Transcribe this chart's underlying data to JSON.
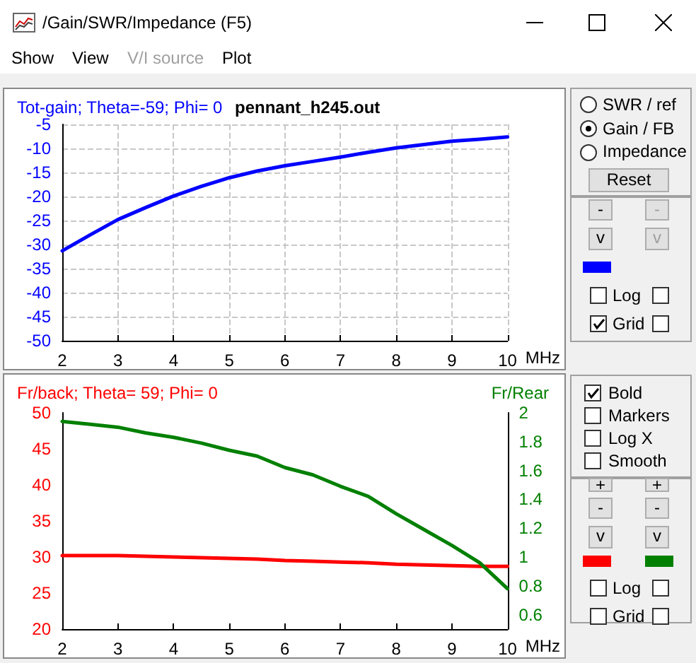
{
  "chart_data": [
    {
      "type": "line",
      "ylabel": "Tot-gain; Theta=-59; Phi= 0",
      "title": "pennant_h245.out",
      "xlabel": "MHz",
      "x": [
        2,
        2.5,
        3,
        3.5,
        4,
        4.5,
        5,
        5.5,
        6,
        6.5,
        7,
        7.5,
        8,
        8.5,
        9,
        9.5,
        10
      ],
      "series": [
        {
          "color": "#0000ff",
          "values": [
            -31.3,
            -28.0,
            -24.8,
            -22.3,
            -19.9,
            -17.9,
            -16.1,
            -14.7,
            -13.6,
            -12.7,
            -11.8,
            -10.8,
            -9.9,
            -9.2,
            -8.5,
            -8.1,
            -7.6
          ]
        }
      ],
      "xlim": [
        2,
        10
      ],
      "xticks": [
        2,
        3,
        4,
        5,
        6,
        7,
        8,
        9,
        10
      ],
      "ylim": [
        -50,
        -5
      ],
      "yticks": [
        -50,
        -45,
        -40,
        -35,
        -30,
        -25,
        -20,
        -15,
        -10,
        -5
      ],
      "grid": true,
      "marker": "none",
      "line_style": "solid",
      "annotations": [
        "/Gain/SWR/Impedance (F5)",
        "Show",
        "View",
        "V/I source",
        "Plot",
        "SWR / ref",
        "Gain / FB",
        "Impedance",
        "Reset",
        "-",
        "-",
        "v",
        "v",
        "Log",
        "Grid"
      ]
    },
    {
      "type": "line",
      "ylabel": "Fr/back; Theta= 59; Phi= 0",
      "y2label": "Fr/Rear",
      "xlabel": "MHz",
      "x": [
        2,
        2.5,
        3,
        3.5,
        4,
        4.5,
        5,
        5.5,
        6,
        6.5,
        7,
        7.5,
        8,
        8.5,
        9,
        9.5,
        10
      ],
      "series": [
        {
          "color": "#ff0000",
          "values": [
            30.2,
            30.2,
            30.2,
            30.1,
            30.0,
            29.9,
            29.8,
            29.7,
            29.5,
            29.4,
            29.3,
            29.2,
            29.0,
            28.9,
            28.8,
            28.7,
            28.7
          ]
        },
        {
          "color": "#008000",
          "axis": "y2",
          "values": [
            1.94,
            1.92,
            1.9,
            1.86,
            1.83,
            1.79,
            1.74,
            1.7,
            1.62,
            1.57,
            1.49,
            1.42,
            1.3,
            1.19,
            1.08,
            0.96,
            0.78
          ]
        }
      ],
      "xlim": [
        2,
        10
      ],
      "xticks": [
        2,
        3,
        4,
        5,
        6,
        7,
        8,
        9,
        10
      ],
      "ylim": [
        20,
        50
      ],
      "yticks": [
        20,
        25,
        30,
        35,
        40,
        45,
        50
      ],
      "y2lim": [
        0.5,
        2
      ],
      "y2ticks": [
        0.6,
        0.8,
        1,
        1.2,
        1.4,
        1.6,
        1.8,
        2
      ],
      "grid": false,
      "marker": "none",
      "line_style": "solid",
      "annotations": [
        "Bold",
        "Markers",
        "Log X",
        "Smooth",
        "+",
        "+",
        "-",
        "-",
        "v",
        "v",
        "Log",
        "Grid"
      ]
    }
  ]
}
